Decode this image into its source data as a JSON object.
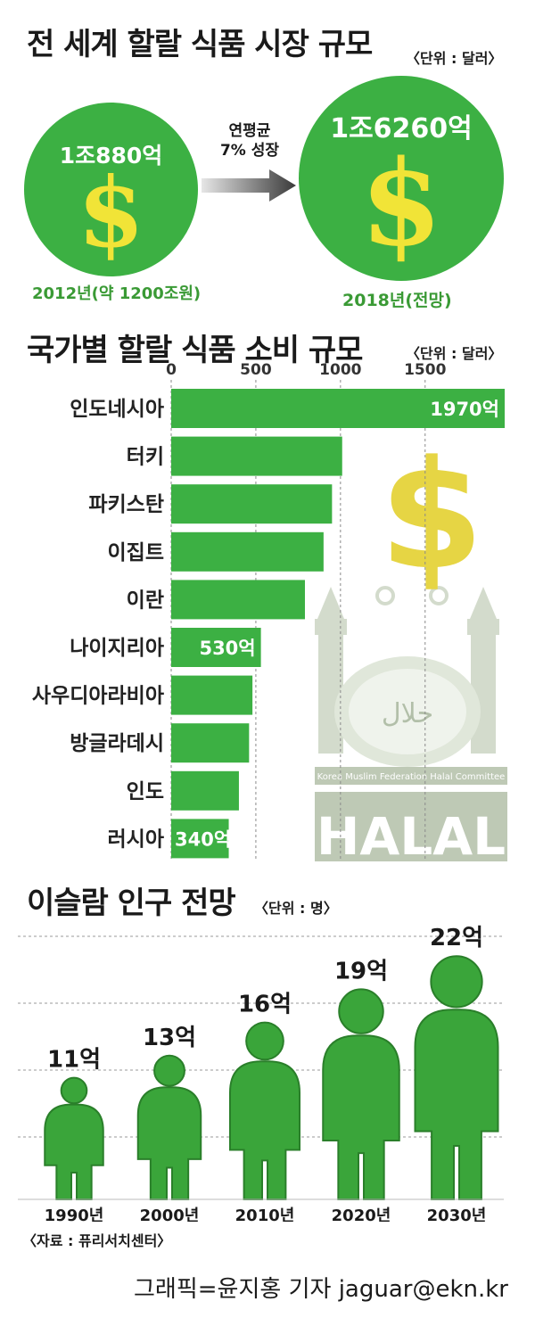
{
  "section1": {
    "title": "전 세계 할랄 식품 시장 규모",
    "unit": "〈단위 : 달러〉",
    "left_value": "1조880억",
    "left_caption": "2012년(약 1200조원)",
    "right_value": "1조6260억",
    "right_caption": "2018년(전망)",
    "arrow_text_1": "연평균",
    "arrow_text_2": "7% 성장",
    "dollar_symbol": "$",
    "colors": {
      "green": "#3cb043",
      "yellow": "#f1e437"
    }
  },
  "section2": {
    "title": "국가별 할랄 식품 소비 규모",
    "unit": "〈단위 : 달러〉",
    "halal_logo": {
      "text": "HALAL",
      "band": "Korea Muslim Federation Halal Committee",
      "arabic": "حلال"
    }
  },
  "section3": {
    "title": "이슬람 인구 전망",
    "unit": "〈단위 : 명〉",
    "source": "〈자료 : 퓨리서치센터〉"
  },
  "credit": "그래픽=윤지홍 기자 jaguar@ekn.kr",
  "chart_data": [
    {
      "type": "bar",
      "orientation": "horizontal",
      "title": "국가별 할랄 식품 소비 규모",
      "unit": "〈단위 : 달러〉",
      "categories": [
        "인도네시아",
        "터키",
        "파키스탄",
        "이집트",
        "이란",
        "나이지리아",
        "사우디아라비아",
        "방글라데시",
        "인도",
        "러시아"
      ],
      "values": [
        1970,
        1010,
        950,
        900,
        790,
        530,
        480,
        460,
        400,
        340
      ],
      "data_labels": [
        "1970억",
        "",
        "",
        "",
        "",
        "530억",
        "",
        "",
        "",
        "340억"
      ],
      "xticks": [
        "0",
        "500",
        "1000",
        "1500"
      ],
      "xlim": [
        0,
        1970
      ],
      "grid": "vertical dashed",
      "bar_color": "#3cb043"
    },
    {
      "type": "bar",
      "title": "이슬람 인구 전망",
      "unit": "〈단위 : 명〉",
      "categories": [
        "1990년",
        "2000년",
        "2010년",
        "2020년",
        "2030년"
      ],
      "values": [
        11,
        13,
        16,
        19,
        22
      ],
      "data_labels": [
        "11억",
        "13억",
        "16억",
        "19억",
        "22억"
      ],
      "ylim": [
        0,
        22
      ],
      "grid": "horizontal dashed",
      "mark": "person pictogram"
    }
  ]
}
